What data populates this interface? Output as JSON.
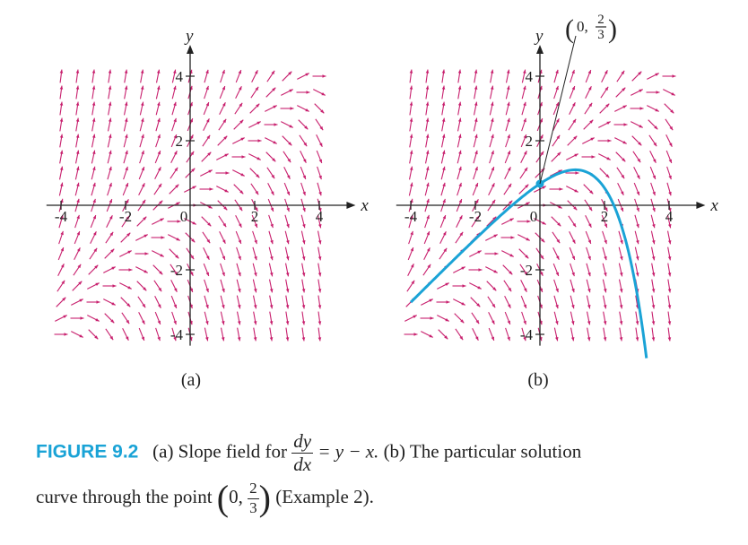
{
  "panels": [
    {
      "id": "a",
      "label": "(a)"
    },
    {
      "id": "b",
      "label": "(b)",
      "point_label": {
        "x": "0",
        "num": "2",
        "den": "3"
      }
    }
  ],
  "axes": {
    "x_name": "x",
    "y_name": "y",
    "x_ticks": [
      "-4",
      "-2",
      "0",
      "2",
      "4"
    ],
    "y_ticks": [
      "4",
      "2",
      "-2",
      "-4"
    ]
  },
  "chart_data": {
    "type": "slope-field",
    "equation": "dy/dx = y - x",
    "xlim": [
      -4,
      4
    ],
    "ylim": [
      -4,
      4
    ],
    "grid_step": 0.5,
    "solution": {
      "function": "y = x + 1 - (1/3)e^x",
      "x_range": [
        -4,
        3.3
      ],
      "initial_point": [
        0,
        0.6667
      ]
    }
  },
  "caption": {
    "figure_label": "FIGURE 9.2",
    "part_a": "(a) Slope field for",
    "deriv_num": "dy",
    "deriv_den": "dx",
    "rhs": "= y − x.",
    "part_b": "(b) The particular solution",
    "line2_start": "curve through the point",
    "point_x": "0,",
    "point_num": "2",
    "point_den": "3",
    "line2_end": "(Example 2)."
  },
  "colors": {
    "arrows": "#c8206e",
    "curve": "#1aa3d6",
    "axes": "#222222"
  }
}
